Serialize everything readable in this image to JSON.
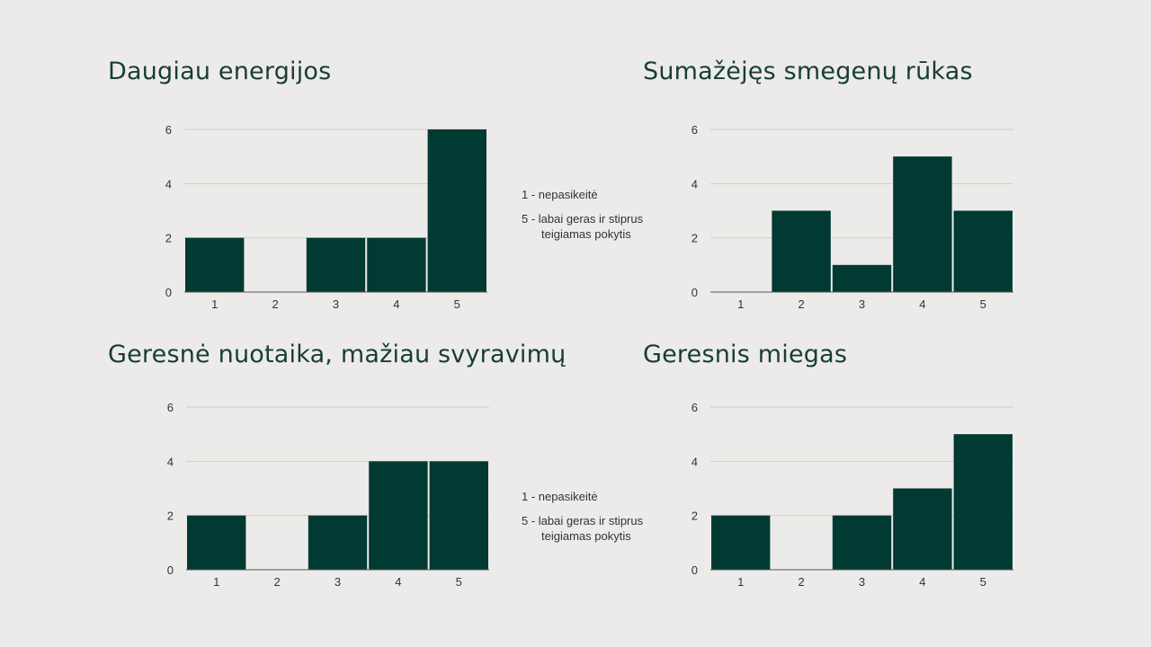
{
  "colors": {
    "bar": "#003a33",
    "background": "#edebe9",
    "title": "#173d38",
    "grid": "#cfcdca"
  },
  "legends": [
    {
      "line1": "1 - nepasikeitė",
      "line2": "5 - labai geras ir stiprus teigiamas pokytis"
    },
    {
      "line1": "1 - nepasikeitė",
      "line2": "5 - labai geras ir stiprus teigiamas pokytis"
    }
  ],
  "chart_data": [
    {
      "type": "bar",
      "title": "Daugiau energijos",
      "categories": [
        "1",
        "2",
        "3",
        "4",
        "5"
      ],
      "values": [
        2,
        0,
        2,
        2,
        6
      ],
      "ylim": [
        0,
        6
      ],
      "yticks": [
        0,
        2,
        4,
        6
      ],
      "grid": true,
      "xlabel": "",
      "ylabel": ""
    },
    {
      "type": "bar",
      "title": "Sumažėjęs smegenų rūkas",
      "categories": [
        "1",
        "2",
        "3",
        "4",
        "5"
      ],
      "values": [
        0,
        3,
        1,
        5,
        3
      ],
      "ylim": [
        0,
        6
      ],
      "yticks": [
        0,
        2,
        4,
        6
      ],
      "grid": true,
      "xlabel": "",
      "ylabel": ""
    },
    {
      "type": "bar",
      "title": "Geresnė nuotaika, mažiau svyravimų",
      "categories": [
        "1",
        "2",
        "3",
        "4",
        "5"
      ],
      "values": [
        2,
        0,
        2,
        4,
        4
      ],
      "ylim": [
        0,
        6
      ],
      "yticks": [
        0,
        2,
        4,
        6
      ],
      "grid": true,
      "xlabel": "",
      "ylabel": ""
    },
    {
      "type": "bar",
      "title": "Geresnis miegas",
      "categories": [
        "1",
        "2",
        "3",
        "4",
        "5"
      ],
      "values": [
        2,
        0,
        2,
        3,
        5
      ],
      "ylim": [
        0,
        6
      ],
      "yticks": [
        0,
        2,
        4,
        6
      ],
      "grid": true,
      "xlabel": "",
      "ylabel": ""
    }
  ]
}
